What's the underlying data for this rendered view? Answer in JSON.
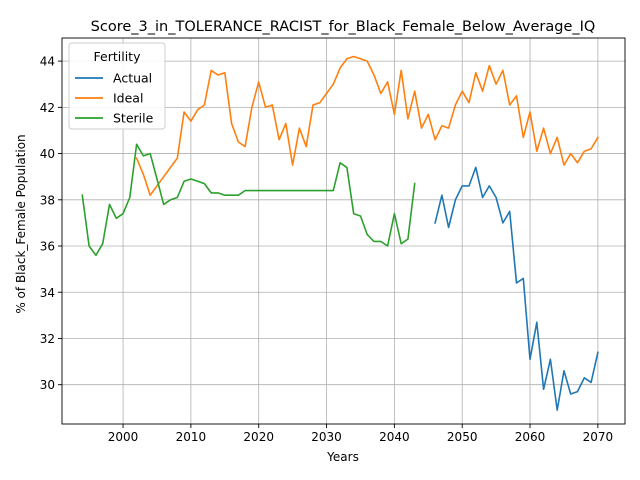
{
  "chart_data": {
    "type": "line",
    "title": "Score_3_in_TOLERANCE_RACIST_for_Black_Female_Below_Average_IQ",
    "xlabel": "Years",
    "ylabel": "% of Black_Female Population",
    "xlim": [
      1991,
      2074
    ],
    "ylim": [
      28.3,
      45.0
    ],
    "xticks": [
      2000,
      2010,
      2020,
      2030,
      2040,
      2050,
      2060,
      2070
    ],
    "yticks": [
      30,
      32,
      34,
      36,
      38,
      40,
      42,
      44
    ],
    "grid": true,
    "legend": {
      "title": "Fertility",
      "position": "top-left"
    },
    "series": [
      {
        "name": "Actual",
        "color": "#1f77b4",
        "x": [
          2046,
          2047,
          2048,
          2049,
          2050,
          2051,
          2052,
          2053,
          2054,
          2055,
          2056,
          2057,
          2058,
          2059,
          2060,
          2061,
          2062,
          2063,
          2064,
          2065,
          2066,
          2067,
          2068,
          2069,
          2070
        ],
        "y": [
          37.0,
          38.2,
          36.8,
          38.0,
          38.6,
          38.6,
          39.4,
          38.1,
          38.6,
          38.1,
          37.0,
          37.5,
          34.4,
          34.6,
          31.1,
          32.7,
          29.8,
          31.1,
          28.9,
          30.6,
          29.6,
          29.7,
          30.3,
          30.1,
          31.4
        ]
      },
      {
        "name": "Ideal",
        "color": "#ff7f0e",
        "x": [
          2002,
          2003,
          2004,
          2005,
          2006,
          2007,
          2008,
          2009,
          2010,
          2011,
          2012,
          2013,
          2014,
          2015,
          2016,
          2017,
          2018,
          2019,
          2020,
          2021,
          2022,
          2023,
          2024,
          2025,
          2026,
          2027,
          2028,
          2029,
          2030,
          2031,
          2032,
          2033,
          2034,
          2035,
          2036,
          2037,
          2038,
          2039,
          2040,
          2041,
          2042,
          2043,
          2044,
          2045,
          2046,
          2047,
          2048,
          2049,
          2050,
          2051,
          2052,
          2053,
          2054,
          2055,
          2056,
          2057,
          2058,
          2059,
          2060,
          2061,
          2062,
          2063,
          2064,
          2065,
          2066,
          2067,
          2068,
          2069,
          2070
        ],
        "y": [
          39.8,
          39.1,
          38.2,
          38.6,
          39.0,
          39.4,
          39.8,
          41.8,
          41.4,
          41.9,
          42.1,
          43.6,
          43.4,
          43.5,
          41.3,
          40.5,
          40.3,
          42.0,
          43.1,
          42.0,
          42.1,
          40.6,
          41.3,
          39.5,
          41.1,
          40.3,
          42.1,
          42.2,
          42.6,
          43.0,
          43.7,
          44.1,
          44.2,
          44.1,
          44.0,
          43.4,
          42.6,
          43.1,
          41.7,
          43.6,
          41.5,
          42.7,
          41.1,
          41.7,
          40.6,
          41.2,
          41.1,
          42.1,
          42.7,
          42.2,
          43.5,
          42.7,
          43.8,
          43.0,
          43.6,
          42.1,
          42.5,
          40.7,
          41.8,
          40.1,
          41.1,
          40.0,
          40.7,
          39.5,
          40.0,
          39.6,
          40.1,
          40.2,
          40.7
        ]
      },
      {
        "name": "Sterile",
        "color": "#2ca02c",
        "x": [
          1994,
          1995,
          1996,
          1997,
          1998,
          1999,
          2000,
          2001,
          2002,
          2003,
          2004,
          2005,
          2006,
          2007,
          2008,
          2009,
          2010,
          2011,
          2012,
          2013,
          2014,
          2015,
          2016,
          2017,
          2018,
          2019,
          2020,
          2021,
          2022,
          2023,
          2024,
          2025,
          2026,
          2027,
          2028,
          2029,
          2030,
          2031,
          2032,
          2033,
          2034,
          2035,
          2036,
          2037,
          2038,
          2039,
          2040,
          2041,
          2042,
          2043
        ],
        "y": [
          38.2,
          36.0,
          35.6,
          36.1,
          37.8,
          37.2,
          37.4,
          38.1,
          40.4,
          39.9,
          40.0,
          38.9,
          37.8,
          38.0,
          38.1,
          38.8,
          38.9,
          38.8,
          38.7,
          38.3,
          38.3,
          38.2,
          38.2,
          38.2,
          38.4,
          38.4,
          38.4,
          38.4,
          38.4,
          38.4,
          38.4,
          38.4,
          38.4,
          38.4,
          38.4,
          38.4,
          38.4,
          38.4,
          39.6,
          39.4,
          37.4,
          37.3,
          36.5,
          36.2,
          36.2,
          36.0,
          37.4,
          36.1,
          36.3,
          38.7
        ]
      }
    ]
  }
}
